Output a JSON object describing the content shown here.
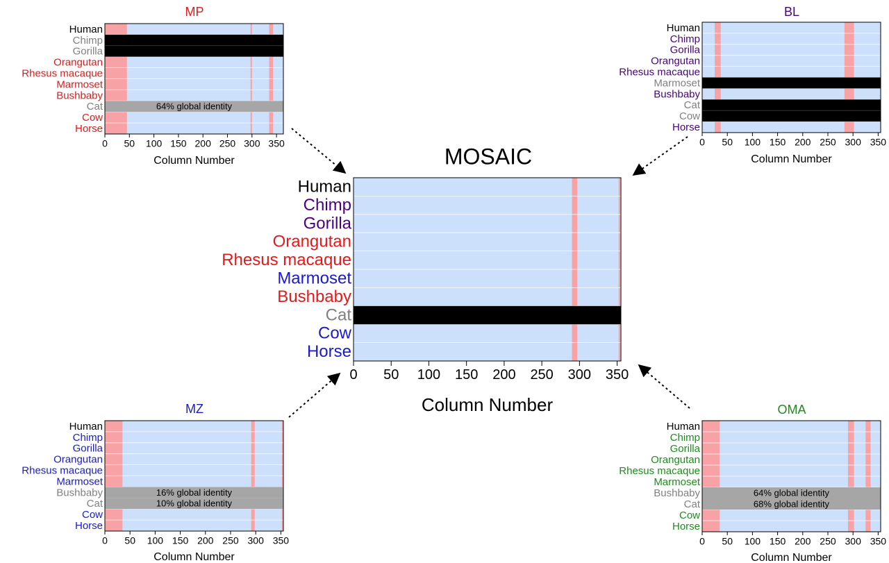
{
  "colors": {
    "background": "#cce0fb",
    "pink": "#f7a3a6",
    "black": "#000000",
    "gray": "#a6a6a6",
    "gridline": "#ffffff",
    "label_black": "#000000",
    "label_gray": "#808080",
    "label_red": "#e31a1c",
    "label_purple": "#4b0082",
    "label_blue": "#1a1acc",
    "label_green": "#1e8c1e"
  },
  "chart_data": [
    {
      "id": "mosaic",
      "type": "heatmap",
      "title": "MOSAIC",
      "title_color": "#000000",
      "xlabel": "Column Number",
      "xlim": [
        0,
        355
      ],
      "xticks": [
        0,
        50,
        100,
        150,
        200,
        250,
        300,
        350
      ],
      "rows": [
        {
          "label": "Human",
          "label_color": "#000000",
          "black": false
        },
        {
          "label": "Chimp",
          "label_color": "#4b0082",
          "black": false
        },
        {
          "label": "Gorilla",
          "label_color": "#4b0082",
          "black": false
        },
        {
          "label": "Orangutan",
          "label_color": "#e31a1c",
          "black": false
        },
        {
          "label": "Rhesus macaque",
          "label_color": "#e31a1c",
          "black": false
        },
        {
          "label": "Marmoset",
          "label_color": "#1a1acc",
          "black": false
        },
        {
          "label": "Bushbaby",
          "label_color": "#e31a1c",
          "black": false
        },
        {
          "label": "Cat",
          "label_color": "#808080",
          "black": true
        },
        {
          "label": "Cow",
          "label_color": "#1a1acc",
          "black": false
        },
        {
          "label": "Horse",
          "label_color": "#1a1acc",
          "black": false
        }
      ],
      "pink_columns": [
        [
          290,
          297
        ],
        [
          352,
          354
        ]
      ],
      "gray_rows": []
    },
    {
      "id": "mp",
      "type": "heatmap",
      "title": "MP",
      "title_color": "#e31a1c",
      "xlabel": "Column Number",
      "xlim": [
        0,
        364
      ],
      "xticks": [
        0,
        50,
        100,
        150,
        200,
        250,
        300,
        350
      ],
      "rows": [
        {
          "label": "Human",
          "label_color": "#000000",
          "black": false
        },
        {
          "label": "Chimp",
          "label_color": "#808080",
          "black": true
        },
        {
          "label": "Gorilla",
          "label_color": "#808080",
          "black": true
        },
        {
          "label": "Orangutan",
          "label_color": "#e31a1c",
          "black": false
        },
        {
          "label": "Rhesus macaque",
          "label_color": "#e31a1c",
          "black": false
        },
        {
          "label": "Marmoset",
          "label_color": "#e31a1c",
          "black": false
        },
        {
          "label": "Bushbaby",
          "label_color": "#e31a1c",
          "black": false
        },
        {
          "label": "Cat",
          "label_color": "#808080",
          "black": false
        },
        {
          "label": "Cow",
          "label_color": "#e31a1c",
          "black": false
        },
        {
          "label": "Horse",
          "label_color": "#e31a1c",
          "black": false
        }
      ],
      "pink_columns": [
        [
          0,
          45
        ],
        [
          297,
          300
        ],
        [
          335,
          343
        ]
      ],
      "gray_rows": [
        {
          "row": 7,
          "text": "64% global identity"
        }
      ]
    },
    {
      "id": "bl",
      "type": "heatmap",
      "title": "BL",
      "title_color": "#4b0082",
      "xlabel": "Column Number",
      "xlim": [
        0,
        355
      ],
      "xticks": [
        0,
        50,
        100,
        150,
        200,
        250,
        300,
        350
      ],
      "rows": [
        {
          "label": "Human",
          "label_color": "#000000",
          "black": false
        },
        {
          "label": "Chimp",
          "label_color": "#4b0082",
          "black": false
        },
        {
          "label": "Gorilla",
          "label_color": "#4b0082",
          "black": false
        },
        {
          "label": "Orangutan",
          "label_color": "#4b0082",
          "black": false
        },
        {
          "label": "Rhesus macaque",
          "label_color": "#4b0082",
          "black": false
        },
        {
          "label": "Marmoset",
          "label_color": "#808080",
          "black": true
        },
        {
          "label": "Bushbaby",
          "label_color": "#4b0082",
          "black": false
        },
        {
          "label": "Cat",
          "label_color": "#808080",
          "black": true
        },
        {
          "label": "Cow",
          "label_color": "#808080",
          "black": true
        },
        {
          "label": "Horse",
          "label_color": "#4b0082",
          "black": false
        }
      ],
      "pink_columns": [
        [
          25,
          37
        ],
        [
          283,
          302
        ]
      ],
      "gray_rows": []
    },
    {
      "id": "mz",
      "type": "heatmap",
      "title": "MZ",
      "title_color": "#1a1acc",
      "xlabel": "Column Number",
      "xlim": [
        0,
        355
      ],
      "xticks": [
        0,
        50,
        100,
        150,
        200,
        250,
        300,
        350
      ],
      "rows": [
        {
          "label": "Human",
          "label_color": "#000000",
          "black": false
        },
        {
          "label": "Chimp",
          "label_color": "#1a1acc",
          "black": false
        },
        {
          "label": "Gorilla",
          "label_color": "#1a1acc",
          "black": false
        },
        {
          "label": "Orangutan",
          "label_color": "#1a1acc",
          "black": false
        },
        {
          "label": "Rhesus macaque",
          "label_color": "#1a1acc",
          "black": false
        },
        {
          "label": "Marmoset",
          "label_color": "#1a1acc",
          "black": false
        },
        {
          "label": "Bushbaby",
          "label_color": "#808080",
          "black": false
        },
        {
          "label": "Cat",
          "label_color": "#808080",
          "black": false
        },
        {
          "label": "Cow",
          "label_color": "#1a1acc",
          "black": false
        },
        {
          "label": "Horse",
          "label_color": "#1a1acc",
          "black": false
        }
      ],
      "pink_columns": [
        [
          0,
          35
        ],
        [
          291,
          298
        ],
        [
          352,
          354
        ]
      ],
      "gray_rows": [
        {
          "row": 6,
          "text": "16% global identity"
        },
        {
          "row": 7,
          "text": "10% global identity"
        }
      ]
    },
    {
      "id": "oma",
      "type": "heatmap",
      "title": "OMA",
      "title_color": "#1e8c1e",
      "xlabel": "Column Number",
      "xlim": [
        0,
        355
      ],
      "xticks": [
        0,
        50,
        100,
        150,
        200,
        250,
        300,
        350
      ],
      "rows": [
        {
          "label": "Human",
          "label_color": "#000000",
          "black": false
        },
        {
          "label": "Chimp",
          "label_color": "#1e8c1e",
          "black": false
        },
        {
          "label": "Gorilla",
          "label_color": "#1e8c1e",
          "black": false
        },
        {
          "label": "Orangutan",
          "label_color": "#1e8c1e",
          "black": false
        },
        {
          "label": "Rhesus macaque",
          "label_color": "#1e8c1e",
          "black": false
        },
        {
          "label": "Marmoset",
          "label_color": "#1e8c1e",
          "black": false
        },
        {
          "label": "Bushbaby",
          "label_color": "#808080",
          "black": false
        },
        {
          "label": "Cat",
          "label_color": "#808080",
          "black": false
        },
        {
          "label": "Cow",
          "label_color": "#1e8c1e",
          "black": false
        },
        {
          "label": "Horse",
          "label_color": "#1e8c1e",
          "black": false
        }
      ],
      "pink_columns": [
        [
          0,
          35
        ],
        [
          290,
          302
        ],
        [
          325,
          335
        ]
      ],
      "gray_rows": [
        {
          "row": 6,
          "text": "64% global identity"
        },
        {
          "row": 7,
          "text": "68% global identity"
        }
      ]
    }
  ]
}
